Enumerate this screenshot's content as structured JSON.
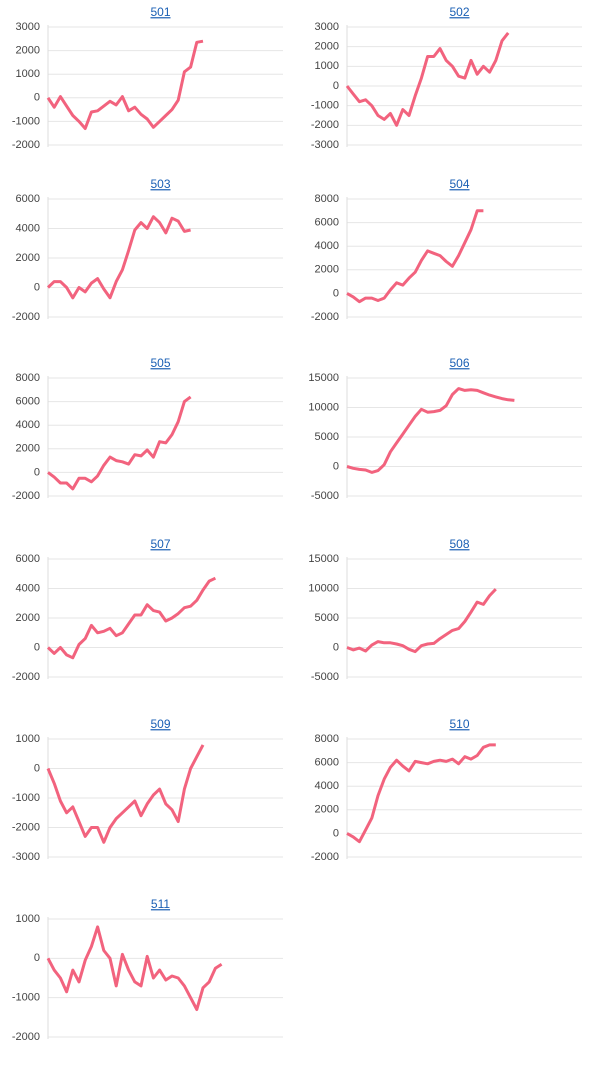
{
  "chart_data": [
    {
      "type": "line",
      "title": "501",
      "color": "#f2637e",
      "ylim": [
        -2000,
        3000
      ],
      "yticks": [
        -2000,
        -1000,
        0,
        1000,
        2000,
        3000
      ],
      "grid": true,
      "values": [
        0,
        -400,
        50,
        -350,
        -750,
        -1000,
        -1300,
        -600,
        -550,
        -350,
        -150,
        -300,
        50,
        -550,
        -400,
        -700,
        -900,
        -1250,
        -1000,
        -750,
        -500,
        -100,
        1100,
        1300,
        2350,
        2400
      ]
    },
    {
      "type": "line",
      "title": "502",
      "color": "#f2637e",
      "ylim": [
        -3000,
        3000
      ],
      "yticks": [
        -3000,
        -2000,
        -1000,
        0,
        1000,
        2000,
        3000
      ],
      "grid": true,
      "values": [
        0,
        -400,
        -800,
        -700,
        -1000,
        -1500,
        -1700,
        -1400,
        -2000,
        -1200,
        -1500,
        -500,
        400,
        1500,
        1500,
        1900,
        1300,
        1000,
        500,
        400,
        1300,
        600,
        1000,
        700,
        1300,
        2300,
        2700
      ]
    },
    {
      "type": "line",
      "title": "503",
      "color": "#f2637e",
      "ylim": [
        -2000,
        6000
      ],
      "yticks": [
        -2000,
        0,
        2000,
        4000,
        6000
      ],
      "grid": true,
      "values": [
        0,
        400,
        400,
        0,
        -700,
        0,
        -300,
        300,
        600,
        -100,
        -700,
        400,
        1200,
        2500,
        3900,
        4400,
        4000,
        4800,
        4400,
        3700,
        4700,
        4500,
        3800,
        3900
      ]
    },
    {
      "type": "line",
      "title": "504",
      "color": "#f2637e",
      "ylim": [
        -2000,
        8000
      ],
      "yticks": [
        -2000,
        0,
        2000,
        4000,
        6000,
        8000
      ],
      "grid": true,
      "values": [
        0,
        -300,
        -700,
        -400,
        -400,
        -600,
        -400,
        300,
        900,
        700,
        1300,
        1800,
        2800,
        3600,
        3400,
        3200,
        2700,
        2300,
        3200,
        4300,
        5400,
        7000,
        7000
      ]
    },
    {
      "type": "line",
      "title": "505",
      "color": "#f2637e",
      "ylim": [
        -2000,
        8000
      ],
      "yticks": [
        -2000,
        0,
        2000,
        4000,
        6000,
        8000
      ],
      "grid": true,
      "values": [
        0,
        -400,
        -900,
        -900,
        -1400,
        -500,
        -500,
        -800,
        -300,
        600,
        1300,
        1000,
        900,
        700,
        1500,
        1400,
        1900,
        1300,
        2600,
        2500,
        3200,
        4300,
        6000,
        6400
      ]
    },
    {
      "type": "line",
      "title": "506",
      "color": "#f2637e",
      "ylim": [
        -5000,
        15000
      ],
      "yticks": [
        -5000,
        0,
        5000,
        10000,
        15000
      ],
      "grid": true,
      "values": [
        0,
        -300,
        -500,
        -600,
        -1000,
        -700,
        300,
        2500,
        4000,
        5500,
        7000,
        8500,
        9700,
        9200,
        9300,
        9500,
        10300,
        12200,
        13200,
        12900,
        13000,
        12900,
        12500,
        12100,
        11800,
        11500,
        11300,
        11200
      ]
    },
    {
      "type": "line",
      "title": "507",
      "color": "#f2637e",
      "ylim": [
        -2000,
        6000
      ],
      "yticks": [
        -2000,
        0,
        2000,
        4000,
        6000
      ],
      "grid": true,
      "values": [
        0,
        -400,
        0,
        -500,
        -700,
        200,
        600,
        1500,
        1000,
        1100,
        1300,
        800,
        1000,
        1600,
        2200,
        2200,
        2900,
        2500,
        2400,
        1800,
        2000,
        2300,
        2700,
        2800,
        3200,
        3900,
        4500,
        4700
      ]
    },
    {
      "type": "line",
      "title": "508",
      "color": "#f2637e",
      "ylim": [
        -5000,
        15000
      ],
      "yticks": [
        -5000,
        0,
        5000,
        10000,
        15000
      ],
      "grid": true,
      "values": [
        0,
        -400,
        -100,
        -600,
        400,
        1000,
        800,
        800,
        600,
        300,
        -300,
        -700,
        300,
        600,
        700,
        1500,
        2200,
        2900,
        3200,
        4400,
        6000,
        7700,
        7300,
        8800,
        9900
      ]
    },
    {
      "type": "line",
      "title": "509",
      "color": "#f2637e",
      "ylim": [
        -3000,
        1000
      ],
      "yticks": [
        -3000,
        -2000,
        -1000,
        0,
        1000
      ],
      "grid": true,
      "values": [
        0,
        -500,
        -1100,
        -1500,
        -1300,
        -1800,
        -2300,
        -2000,
        -2000,
        -2500,
        -2000,
        -1700,
        -1500,
        -1300,
        -1100,
        -1600,
        -1200,
        -900,
        -700,
        -1200,
        -1400,
        -1800,
        -700,
        0,
        400,
        800
      ]
    },
    {
      "type": "line",
      "title": "510",
      "color": "#f2637e",
      "ylim": [
        -2000,
        8000
      ],
      "yticks": [
        -2000,
        0,
        2000,
        4000,
        6000,
        8000
      ],
      "grid": true,
      "values": [
        0,
        -300,
        -700,
        300,
        1300,
        3200,
        4600,
        5600,
        6200,
        5700,
        5300,
        6100,
        6000,
        5900,
        6100,
        6200,
        6100,
        6300,
        5900,
        6500,
        6300,
        6600,
        7300,
        7500,
        7500
      ]
    },
    {
      "type": "line",
      "title": "511",
      "color": "#f2637e",
      "ylim": [
        -2000,
        1000
      ],
      "yticks": [
        -2000,
        -1000,
        0,
        1000
      ],
      "grid": true,
      "values": [
        0,
        -300,
        -500,
        -850,
        -300,
        -600,
        -50,
        300,
        800,
        200,
        0,
        -700,
        100,
        -300,
        -600,
        -700,
        50,
        -500,
        -300,
        -550,
        -450,
        -500,
        -700,
        -1000,
        -1300,
        -750,
        -600,
        -250,
        -150
      ]
    }
  ]
}
